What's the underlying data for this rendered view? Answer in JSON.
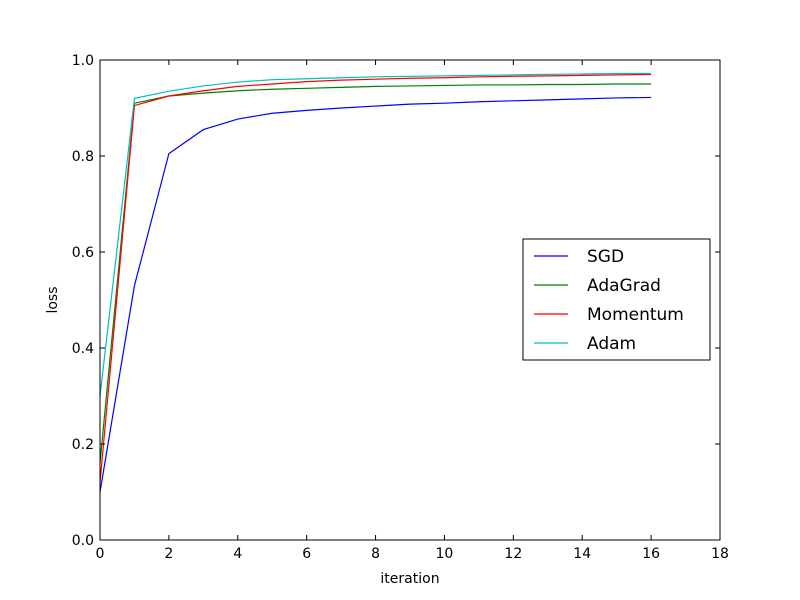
{
  "chart_data": {
    "type": "line",
    "title": "",
    "xlabel": "iteration",
    "ylabel": "loss",
    "xlim": [
      0,
      18
    ],
    "ylim": [
      0.0,
      1.0
    ],
    "xticks": [
      0,
      2,
      4,
      6,
      8,
      10,
      12,
      14,
      16,
      18
    ],
    "yticks": [
      "0.0",
      "0.2",
      "0.4",
      "0.6",
      "0.8",
      "1.0"
    ],
    "grid": false,
    "legend_position": "center-right",
    "x": [
      0,
      1,
      2,
      3,
      4,
      5,
      6,
      7,
      8,
      9,
      10,
      11,
      12,
      13,
      14,
      15,
      16
    ],
    "series": [
      {
        "name": "SGD",
        "color": "#0000ff",
        "values": [
          0.1,
          0.53,
          0.805,
          0.855,
          0.877,
          0.889,
          0.895,
          0.9,
          0.904,
          0.908,
          0.91,
          0.913,
          0.915,
          0.917,
          0.919,
          0.921,
          0.922
        ]
      },
      {
        "name": "AdaGrad",
        "color": "#008000",
        "values": [
          0.16,
          0.91,
          0.925,
          0.931,
          0.936,
          0.939,
          0.941,
          0.943,
          0.945,
          0.946,
          0.947,
          0.948,
          0.948,
          0.949,
          0.949,
          0.95,
          0.95
        ]
      },
      {
        "name": "Momentum",
        "color": "#ff0000",
        "values": [
          0.12,
          0.905,
          0.925,
          0.936,
          0.945,
          0.95,
          0.955,
          0.958,
          0.96,
          0.962,
          0.963,
          0.965,
          0.966,
          0.967,
          0.968,
          0.969,
          0.97
        ]
      },
      {
        "name": "Adam",
        "color": "#00bfbf",
        "values": [
          0.3,
          0.92,
          0.935,
          0.946,
          0.954,
          0.959,
          0.961,
          0.963,
          0.965,
          0.966,
          0.967,
          0.968,
          0.969,
          0.97,
          0.971,
          0.972,
          0.972
        ]
      }
    ]
  }
}
